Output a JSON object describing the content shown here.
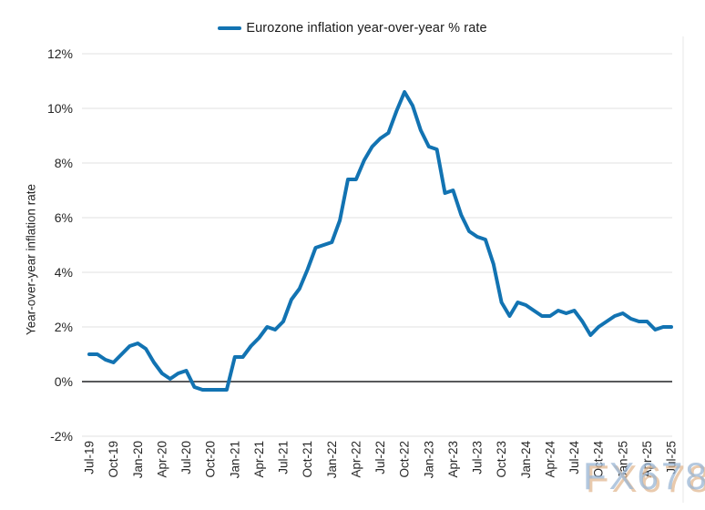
{
  "legend": {
    "label": "Eurozone inflation year-over-year % rate"
  },
  "watermark": {
    "text": "FX678"
  },
  "chart_data": {
    "type": "line",
    "title": "",
    "xlabel": "",
    "ylabel": "Year-over-year inflation rate",
    "ylim": [
      -2,
      12
    ],
    "y_ticks": [
      12,
      10,
      8,
      6,
      4,
      2,
      0,
      -2
    ],
    "y_tick_labels": [
      "12%",
      "10%",
      "8%",
      "6%",
      "4%",
      "2%",
      "0%",
      "-2%"
    ],
    "grid": "horizontal",
    "zero_line": true,
    "legend_position": "top-center",
    "line_color": "#1273b2",
    "grid_color": "#e7e7e7",
    "zero_line_color": "#58595b",
    "x": [
      "Jul-19",
      "Aug-19",
      "Sep-19",
      "Oct-19",
      "Nov-19",
      "Dec-19",
      "Jan-20",
      "Feb-20",
      "Mar-20",
      "Apr-20",
      "May-20",
      "Jun-20",
      "Jul-20",
      "Aug-20",
      "Sep-20",
      "Oct-20",
      "Nov-20",
      "Dec-20",
      "Jan-21",
      "Feb-21",
      "Mar-21",
      "Apr-21",
      "May-21",
      "Jun-21",
      "Jul-21",
      "Aug-21",
      "Sep-21",
      "Oct-21",
      "Nov-21",
      "Dec-21",
      "Jan-22",
      "Feb-22",
      "Mar-22",
      "Apr-22",
      "May-22",
      "Jun-22",
      "Jul-22",
      "Aug-22",
      "Sep-22",
      "Oct-22",
      "Nov-22",
      "Dec-22",
      "Jan-23",
      "Feb-23",
      "Mar-23",
      "Apr-23",
      "May-23",
      "Jun-23",
      "Jul-23",
      "Aug-23",
      "Sep-23",
      "Oct-23",
      "Nov-23",
      "Dec-23",
      "Jan-24",
      "Feb-24",
      "Mar-24",
      "Apr-24",
      "May-24",
      "Jun-24",
      "Jul-24",
      "Aug-24",
      "Sep-24",
      "Oct-24",
      "Nov-24",
      "Dec-24",
      "Jan-25",
      "Feb-25",
      "Mar-25",
      "Apr-25",
      "May-25",
      "Jun-25",
      "Jul-25"
    ],
    "x_tick_labels": [
      "Jul-19",
      "Oct-19",
      "Jan-20",
      "Apr-20",
      "Jul-20",
      "Oct-20",
      "Jan-21",
      "Apr-21",
      "Jul-21",
      "Oct-21",
      "Jan-22",
      "Apr-22",
      "Jul-22",
      "Oct-22",
      "Jan-23",
      "Apr-23",
      "Jul-23",
      "Oct-23",
      "Jan-24",
      "Apr-24",
      "Jul-24",
      "Oct-24",
      "Jan-25",
      "Apr-25",
      "Jul-25"
    ],
    "x_tick_every": 3,
    "series": [
      {
        "name": "Eurozone inflation year-over-year % rate",
        "values": [
          1.0,
          1.0,
          0.8,
          0.7,
          1.0,
          1.3,
          1.4,
          1.2,
          0.7,
          0.3,
          0.1,
          0.3,
          0.4,
          -0.2,
          -0.3,
          -0.3,
          -0.3,
          -0.3,
          0.9,
          0.9,
          1.3,
          1.6,
          2.0,
          1.9,
          2.2,
          3.0,
          3.4,
          4.1,
          4.9,
          5.0,
          5.1,
          5.9,
          7.4,
          7.4,
          8.1,
          8.6,
          8.9,
          9.1,
          9.9,
          10.6,
          10.1,
          9.2,
          8.6,
          8.5,
          6.9,
          7.0,
          6.1,
          5.5,
          5.3,
          5.2,
          4.3,
          2.9,
          2.4,
          2.9,
          2.8,
          2.6,
          2.4,
          2.4,
          2.6,
          2.5,
          2.6,
          2.2,
          1.7,
          2.0,
          2.2,
          2.4,
          2.5,
          2.3,
          2.2,
          2.2,
          1.9,
          2.0,
          2.0
        ]
      }
    ]
  }
}
